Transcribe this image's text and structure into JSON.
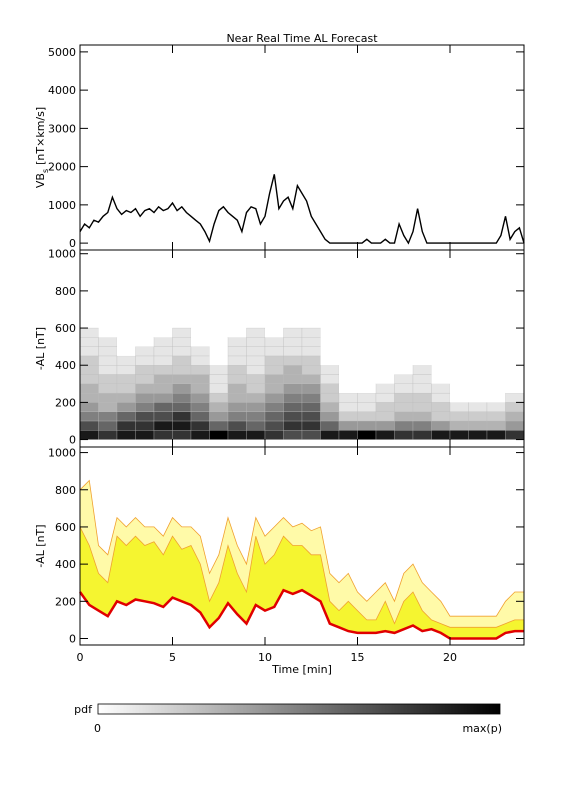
{
  "chart_data": [
    {
      "type": "line",
      "title": "Near Real Time AL Forecast",
      "y_label": "VB",
      "y_label_sub": "s",
      "y_label_unit": "[nT×km/s]",
      "color": "#000000",
      "xlim": [
        0,
        24
      ],
      "xticks": [
        0,
        5,
        10,
        15,
        20
      ],
      "ylim": [
        -180,
        5180
      ],
      "yticks": [
        0,
        1000,
        2000,
        3000,
        4000,
        5000
      ],
      "x": [
        0,
        0.25,
        0.5,
        0.75,
        1,
        1.25,
        1.5,
        1.75,
        2,
        2.25,
        2.5,
        2.75,
        3,
        3.25,
        3.5,
        3.75,
        4,
        4.25,
        4.5,
        4.75,
        5,
        5.25,
        5.5,
        5.75,
        6,
        6.25,
        6.5,
        6.75,
        7,
        7.25,
        7.5,
        7.75,
        8,
        8.25,
        8.5,
        8.75,
        9,
        9.25,
        9.5,
        9.75,
        10,
        10.25,
        10.5,
        10.75,
        11,
        11.25,
        11.5,
        11.75,
        12,
        12.25,
        12.5,
        12.75,
        13,
        13.25,
        13.5,
        13.75,
        14,
        14.25,
        14.5,
        14.75,
        15,
        15.25,
        15.5,
        15.75,
        16,
        16.25,
        16.5,
        16.75,
        17,
        17.25,
        17.5,
        17.75,
        18,
        18.25,
        18.5,
        18.75,
        19,
        19.25,
        19.5,
        19.75,
        20,
        20.25,
        20.5,
        20.75,
        21,
        21.25,
        21.5,
        21.75,
        22,
        22.25,
        22.5,
        22.75,
        23,
        23.25,
        23.5,
        23.75,
        24
      ],
      "values": [
        300,
        500,
        400,
        600,
        550,
        700,
        800,
        1200,
        900,
        750,
        850,
        800,
        900,
        700,
        850,
        900,
        800,
        950,
        850,
        900,
        1050,
        850,
        950,
        800,
        700,
        600,
        500,
        300,
        50,
        500,
        850,
        950,
        800,
        700,
        600,
        300,
        800,
        950,
        900,
        500,
        700,
        1300,
        1800,
        900,
        1100,
        1200,
        900,
        1500,
        1300,
        1100,
        700,
        500,
        300,
        100,
        0,
        0,
        0,
        0,
        0,
        0,
        0,
        0,
        100,
        0,
        0,
        0,
        100,
        0,
        0,
        500,
        200,
        0,
        300,
        900,
        300,
        0,
        0,
        0,
        0,
        0,
        0,
        0,
        0,
        0,
        0,
        0,
        0,
        0,
        0,
        0,
        0,
        200,
        700,
        100,
        300,
        400,
        0
      ]
    },
    {
      "type": "heatmap",
      "y_label": "-AL [nT]",
      "xlim": [
        0,
        24
      ],
      "xticks": [
        0,
        5,
        10,
        15,
        20
      ],
      "ylim": [
        -40,
        1020
      ],
      "yticks": [
        0,
        200,
        400,
        600,
        800,
        1000
      ],
      "x_bins": [
        0,
        1,
        2,
        3,
        4,
        5,
        6,
        7,
        8,
        9,
        10,
        11,
        12,
        13,
        14,
        15,
        16,
        17,
        18,
        19,
        20,
        21,
        22,
        23,
        24
      ],
      "y_bins": [
        0,
        50,
        100,
        150,
        200,
        250,
        300,
        350,
        400,
        450,
        500,
        550,
        600
      ],
      "z": [
        [
          0.9,
          0.7,
          0.5,
          0.4,
          0.3,
          0.3,
          0.2,
          0.2,
          0.2,
          0.1,
          0.1,
          0.1
        ],
        [
          0.8,
          0.6,
          0.5,
          0.3,
          0.3,
          0.2,
          0.2,
          0.1,
          0.1,
          0.1,
          0.1,
          0
        ],
        [
          0.9,
          0.8,
          0.6,
          0.4,
          0.3,
          0.2,
          0.2,
          0.1,
          0.1,
          0,
          0,
          0
        ],
        [
          0.9,
          0.8,
          0.7,
          0.5,
          0.4,
          0.3,
          0.2,
          0.2,
          0.1,
          0.1,
          0,
          0
        ],
        [
          0.8,
          0.9,
          0.7,
          0.6,
          0.4,
          0.3,
          0.3,
          0.2,
          0.1,
          0.1,
          0.1,
          0
        ],
        [
          0.8,
          0.9,
          0.8,
          0.6,
          0.5,
          0.4,
          0.3,
          0.2,
          0.2,
          0.1,
          0.1,
          0.1
        ],
        [
          0.9,
          0.8,
          0.6,
          0.5,
          0.4,
          0.3,
          0.3,
          0.2,
          0.1,
          0.1,
          0,
          0
        ],
        [
          1,
          0.6,
          0.4,
          0.3,
          0.2,
          0.1,
          0.1,
          0.1,
          0,
          0,
          0,
          0
        ],
        [
          0.9,
          0.7,
          0.5,
          0.4,
          0.3,
          0.3,
          0.2,
          0.2,
          0.1,
          0.1,
          0.1,
          0
        ],
        [
          0.9,
          0.6,
          0.5,
          0.4,
          0.3,
          0.2,
          0.2,
          0.1,
          0.1,
          0.1,
          0.1,
          0.1
        ],
        [
          0.8,
          0.7,
          0.6,
          0.5,
          0.4,
          0.3,
          0.3,
          0.2,
          0.2,
          0.1,
          0.1,
          0
        ],
        [
          0.7,
          0.8,
          0.7,
          0.6,
          0.5,
          0.4,
          0.3,
          0.3,
          0.2,
          0.1,
          0.1,
          0.1
        ],
        [
          0.7,
          0.8,
          0.7,
          0.6,
          0.5,
          0.4,
          0.3,
          0.2,
          0.2,
          0.1,
          0.1,
          0.1
        ],
        [
          0.9,
          0.6,
          0.4,
          0.3,
          0.2,
          0.2,
          0.1,
          0.1,
          0,
          0,
          0,
          0
        ],
        [
          0.9,
          0.4,
          0.2,
          0.1,
          0.1,
          0,
          0,
          0,
          0,
          0,
          0,
          0
        ],
        [
          1,
          0.4,
          0.2,
          0.1,
          0.1,
          0,
          0,
          0,
          0,
          0,
          0,
          0
        ],
        [
          0.9,
          0.4,
          0.2,
          0.2,
          0.1,
          0.1,
          0,
          0,
          0,
          0,
          0,
          0
        ],
        [
          0.8,
          0.5,
          0.3,
          0.2,
          0.2,
          0.1,
          0.1,
          0,
          0,
          0,
          0,
          0
        ],
        [
          0.8,
          0.5,
          0.3,
          0.2,
          0.2,
          0.1,
          0.1,
          0.1,
          0,
          0,
          0,
          0
        ],
        [
          0.9,
          0.4,
          0.2,
          0.2,
          0.1,
          0.1,
          0,
          0,
          0,
          0,
          0,
          0
        ],
        [
          0.9,
          0.3,
          0.2,
          0.1,
          0,
          0,
          0,
          0,
          0,
          0,
          0,
          0
        ],
        [
          0.9,
          0.3,
          0.2,
          0.1,
          0,
          0,
          0,
          0,
          0,
          0,
          0,
          0
        ],
        [
          0.9,
          0.3,
          0.2,
          0.1,
          0,
          0,
          0,
          0,
          0,
          0,
          0,
          0
        ],
        [
          0.8,
          0.4,
          0.3,
          0.2,
          0.1,
          0,
          0,
          0,
          0,
          0,
          0,
          0
        ]
      ]
    },
    {
      "type": "band",
      "y_label": "-AL [nT]",
      "x_label": "Time [min]",
      "xlim": [
        0,
        24
      ],
      "xticks": [
        0,
        5,
        10,
        15,
        20
      ],
      "ylim": [
        -35,
        1030
      ],
      "yticks": [
        0,
        200,
        400,
        600,
        800,
        1000
      ],
      "x": [
        0,
        0.5,
        1,
        1.5,
        2,
        2.5,
        3,
        3.5,
        4,
        4.5,
        5,
        5.5,
        6,
        6.5,
        7,
        7.5,
        8,
        8.5,
        9,
        9.5,
        10,
        10.5,
        11,
        11.5,
        12,
        12.5,
        13,
        13.5,
        14,
        14.5,
        15,
        15.5,
        16,
        16.5,
        17,
        17.5,
        18,
        18.5,
        19,
        19.5,
        20,
        20.5,
        21,
        21.5,
        22,
        22.5,
        23,
        23.5,
        24
      ],
      "bands": [
        {
          "color": "#fffaa8",
          "edge": "#f0a030",
          "values": [
            800,
            850,
            500,
            450,
            650,
            600,
            650,
            600,
            600,
            550,
            650,
            600,
            600,
            550,
            350,
            450,
            650,
            500,
            400,
            650,
            550,
            600,
            650,
            600,
            620,
            580,
            600,
            350,
            300,
            350,
            250,
            200,
            250,
            300,
            200,
            350,
            400,
            300,
            250,
            200,
            120,
            120,
            120,
            120,
            120,
            120,
            200,
            250,
            250
          ]
        },
        {
          "color": "#f5f530",
          "edge": "#f0a030",
          "values": [
            600,
            500,
            350,
            300,
            550,
            500,
            550,
            500,
            520,
            450,
            550,
            480,
            500,
            400,
            200,
            300,
            500,
            350,
            250,
            550,
            400,
            450,
            550,
            500,
            500,
            450,
            450,
            200,
            150,
            200,
            150,
            100,
            100,
            200,
            80,
            200,
            250,
            150,
            100,
            80,
            60,
            60,
            60,
            60,
            60,
            60,
            80,
            100,
            100
          ]
        }
      ],
      "line": {
        "color": "#e00000",
        "values": [
          250,
          180,
          150,
          120,
          200,
          180,
          210,
          200,
          190,
          170,
          220,
          200,
          180,
          140,
          60,
          110,
          190,
          130,
          80,
          180,
          150,
          170,
          260,
          240,
          260,
          230,
          200,
          80,
          60,
          40,
          30,
          30,
          30,
          40,
          30,
          50,
          70,
          40,
          50,
          30,
          0,
          0,
          0,
          0,
          0,
          0,
          30,
          40,
          40
        ]
      }
    }
  ],
  "colorbar": {
    "label": "pdf",
    "min_label": "0",
    "max_label": "max(p)"
  }
}
